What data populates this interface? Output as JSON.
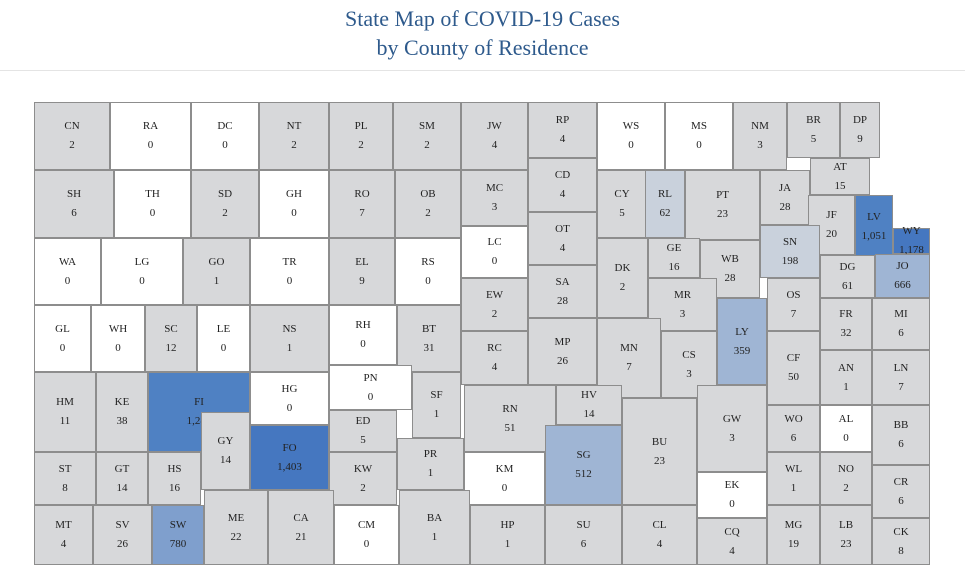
{
  "title": {
    "line1": "State Map of COVID-19 Cases",
    "line2": "by County of Residence"
  },
  "colors": {
    "zero": "#ffffff",
    "low": "#d7d8da",
    "mid_low": "#c9d1dc",
    "mid": "#9fb5d4",
    "mid_high": "#7f9fcd",
    "high": "#4f81c3",
    "highest": "#4577c0"
  },
  "counties": [
    {
      "abbr": "CN",
      "cases": "2",
      "tier": "low"
    },
    {
      "abbr": "RA",
      "cases": "0",
      "tier": "zero"
    },
    {
      "abbr": "DC",
      "cases": "0",
      "tier": "zero"
    },
    {
      "abbr": "NT",
      "cases": "2",
      "tier": "low"
    },
    {
      "abbr": "PL",
      "cases": "2",
      "tier": "low"
    },
    {
      "abbr": "SM",
      "cases": "2",
      "tier": "low"
    },
    {
      "abbr": "JW",
      "cases": "4",
      "tier": "low"
    },
    {
      "abbr": "RP",
      "cases": "4",
      "tier": "low"
    },
    {
      "abbr": "WS",
      "cases": "0",
      "tier": "zero"
    },
    {
      "abbr": "MS",
      "cases": "0",
      "tier": "zero"
    },
    {
      "abbr": "NM",
      "cases": "3",
      "tier": "low"
    },
    {
      "abbr": "BR",
      "cases": "5",
      "tier": "low"
    },
    {
      "abbr": "DP",
      "cases": "9",
      "tier": "low"
    },
    {
      "abbr": "SH",
      "cases": "6",
      "tier": "low"
    },
    {
      "abbr": "TH",
      "cases": "0",
      "tier": "zero"
    },
    {
      "abbr": "SD",
      "cases": "2",
      "tier": "low"
    },
    {
      "abbr": "GH",
      "cases": "0",
      "tier": "zero"
    },
    {
      "abbr": "RO",
      "cases": "7",
      "tier": "low"
    },
    {
      "abbr": "OB",
      "cases": "2",
      "tier": "low"
    },
    {
      "abbr": "MC",
      "cases": "3",
      "tier": "low"
    },
    {
      "abbr": "CD",
      "cases": "4",
      "tier": "low"
    },
    {
      "abbr": "CY",
      "cases": "5",
      "tier": "low"
    },
    {
      "abbr": "RL",
      "cases": "62",
      "tier": "mid_low"
    },
    {
      "abbr": "PT",
      "cases": "23",
      "tier": "low"
    },
    {
      "abbr": "JA",
      "cases": "28",
      "tier": "low"
    },
    {
      "abbr": "AT",
      "cases": "15",
      "tier": "low"
    },
    {
      "abbr": "JF",
      "cases": "20",
      "tier": "low"
    },
    {
      "abbr": "LV",
      "cases": "1,051",
      "tier": "high"
    },
    {
      "abbr": "WY",
      "cases": "1,178",
      "tier": "highest"
    },
    {
      "abbr": "WA",
      "cases": "0",
      "tier": "zero"
    },
    {
      "abbr": "LG",
      "cases": "0",
      "tier": "zero"
    },
    {
      "abbr": "GO",
      "cases": "1",
      "tier": "low"
    },
    {
      "abbr": "TR",
      "cases": "0",
      "tier": "zero"
    },
    {
      "abbr": "EL",
      "cases": "9",
      "tier": "low"
    },
    {
      "abbr": "RS",
      "cases": "0",
      "tier": "zero"
    },
    {
      "abbr": "LC",
      "cases": "0",
      "tier": "zero"
    },
    {
      "abbr": "OT",
      "cases": "4",
      "tier": "low"
    },
    {
      "abbr": "DK",
      "cases": "2",
      "tier": "low"
    },
    {
      "abbr": "GE",
      "cases": "16",
      "tier": "low"
    },
    {
      "abbr": "WB",
      "cases": "28",
      "tier": "low"
    },
    {
      "abbr": "SN",
      "cases": "198",
      "tier": "mid_low"
    },
    {
      "abbr": "DG",
      "cases": "61",
      "tier": "low"
    },
    {
      "abbr": "JO",
      "cases": "666",
      "tier": "mid"
    },
    {
      "abbr": "GL",
      "cases": "0",
      "tier": "zero"
    },
    {
      "abbr": "WH",
      "cases": "0",
      "tier": "zero"
    },
    {
      "abbr": "SC",
      "cases": "12",
      "tier": "low"
    },
    {
      "abbr": "LE",
      "cases": "0",
      "tier": "zero"
    },
    {
      "abbr": "NS",
      "cases": "1",
      "tier": "low"
    },
    {
      "abbr": "RH",
      "cases": "0",
      "tier": "zero"
    },
    {
      "abbr": "BT",
      "cases": "31",
      "tier": "low"
    },
    {
      "abbr": "EW",
      "cases": "2",
      "tier": "low"
    },
    {
      "abbr": "SA",
      "cases": "28",
      "tier": "low"
    },
    {
      "abbr": "MR",
      "cases": "3",
      "tier": "low"
    },
    {
      "abbr": "LY",
      "cases": "359",
      "tier": "mid"
    },
    {
      "abbr": "OS",
      "cases": "7",
      "tier": "low"
    },
    {
      "abbr": "FR",
      "cases": "32",
      "tier": "low"
    },
    {
      "abbr": "MI",
      "cases": "6",
      "tier": "low"
    },
    {
      "abbr": "HM",
      "cases": "11",
      "tier": "low"
    },
    {
      "abbr": "KE",
      "cases": "38",
      "tier": "low"
    },
    {
      "abbr": "FI",
      "cases": "1,281",
      "tier": "high"
    },
    {
      "abbr": "HG",
      "cases": "0",
      "tier": "zero"
    },
    {
      "abbr": "PN",
      "cases": "0",
      "tier": "zero"
    },
    {
      "abbr": "SF",
      "cases": "1",
      "tier": "low"
    },
    {
      "abbr": "RC",
      "cases": "4",
      "tier": "low"
    },
    {
      "abbr": "MP",
      "cases": "26",
      "tier": "low"
    },
    {
      "abbr": "MN",
      "cases": "7",
      "tier": "low"
    },
    {
      "abbr": "CS",
      "cases": "3",
      "tier": "low"
    },
    {
      "abbr": "CF",
      "cases": "50",
      "tier": "low"
    },
    {
      "abbr": "AN",
      "cases": "1",
      "tier": "low"
    },
    {
      "abbr": "LN",
      "cases": "7",
      "tier": "low"
    },
    {
      "abbr": "ED",
      "cases": "5",
      "tier": "low"
    },
    {
      "abbr": "GY",
      "cases": "14",
      "tier": "low"
    },
    {
      "abbr": "FO",
      "cases": "1,403",
      "tier": "highest"
    },
    {
      "abbr": "RN",
      "cases": "51",
      "tier": "low"
    },
    {
      "abbr": "HV",
      "cases": "14",
      "tier": "low"
    },
    {
      "abbr": "SG",
      "cases": "512",
      "tier": "mid"
    },
    {
      "abbr": "BU",
      "cases": "23",
      "tier": "low"
    },
    {
      "abbr": "GW",
      "cases": "3",
      "tier": "low"
    },
    {
      "abbr": "WO",
      "cases": "6",
      "tier": "low"
    },
    {
      "abbr": "AL",
      "cases": "0",
      "tier": "zero"
    },
    {
      "abbr": "BB",
      "cases": "6",
      "tier": "low"
    },
    {
      "abbr": "ST",
      "cases": "8",
      "tier": "low"
    },
    {
      "abbr": "GT",
      "cases": "14",
      "tier": "low"
    },
    {
      "abbr": "HS",
      "cases": "16",
      "tier": "low"
    },
    {
      "abbr": "KW",
      "cases": "2",
      "tier": "low"
    },
    {
      "abbr": "PR",
      "cases": "1",
      "tier": "low"
    },
    {
      "abbr": "KM",
      "cases": "0",
      "tier": "zero"
    },
    {
      "abbr": "EK",
      "cases": "0",
      "tier": "zero"
    },
    {
      "abbr": "WL",
      "cases": "1",
      "tier": "low"
    },
    {
      "abbr": "NO",
      "cases": "2",
      "tier": "low"
    },
    {
      "abbr": "CR",
      "cases": "6",
      "tier": "low"
    },
    {
      "abbr": "MT",
      "cases": "4",
      "tier": "low"
    },
    {
      "abbr": "SV",
      "cases": "26",
      "tier": "low"
    },
    {
      "abbr": "SW",
      "cases": "780",
      "tier": "mid_high"
    },
    {
      "abbr": "ME",
      "cases": "22",
      "tier": "low"
    },
    {
      "abbr": "CA",
      "cases": "21",
      "tier": "low"
    },
    {
      "abbr": "CM",
      "cases": "0",
      "tier": "zero"
    },
    {
      "abbr": "BA",
      "cases": "1",
      "tier": "low"
    },
    {
      "abbr": "HP",
      "cases": "1",
      "tier": "low"
    },
    {
      "abbr": "SU",
      "cases": "6",
      "tier": "low"
    },
    {
      "abbr": "CL",
      "cases": "4",
      "tier": "low"
    },
    {
      "abbr": "CQ",
      "cases": "4",
      "tier": "low"
    },
    {
      "abbr": "MG",
      "cases": "19",
      "tier": "low"
    },
    {
      "abbr": "LB",
      "cases": "23",
      "tier": "low"
    },
    {
      "abbr": "CK",
      "cases": "8",
      "tier": "low"
    }
  ]
}
